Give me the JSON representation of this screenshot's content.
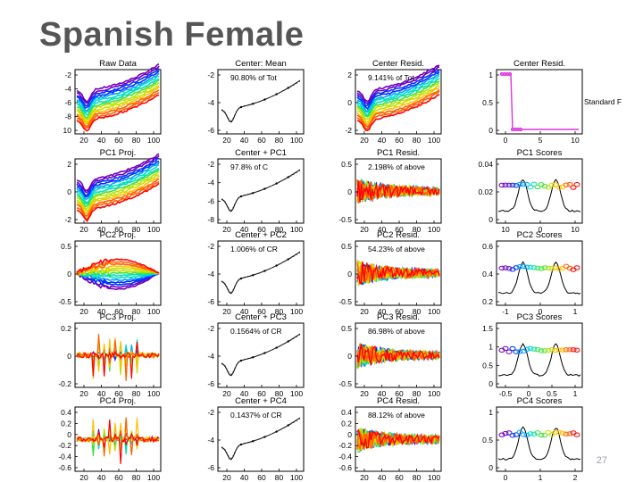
{
  "slide": {
    "title": "Spanish Female",
    "page_number": "27"
  },
  "chart_data": {
    "type": "grid",
    "rows": [
      {
        "row_label": "raw",
        "panels": [
          {
            "title": "Raw Data",
            "kind": "curves",
            "yticks": [
              "-2",
              "-4",
              "-6",
              "-8",
              "10"
            ],
            "xticks": [
              "20",
              "40",
              "60",
              "80",
              "100"
            ],
            "annotation": ""
          },
          {
            "title": "Center: Mean",
            "kind": "center",
            "yticks": [
              "-2",
              "-4",
              "-6"
            ],
            "xticks": [
              "20",
              "40",
              "60",
              "80",
              "100"
            ],
            "annotation": "90.80% of Tot"
          },
          {
            "title": "Center Resid.",
            "kind": "curves",
            "yticks": [
              "2",
              "0",
              "-2"
            ],
            "xticks": [
              "20",
              "40",
              "60",
              "80",
              "100"
            ],
            "annotation": "9.141% of Tot"
          },
          {
            "title": "Center Resid.",
            "kind": "step",
            "yticks": [
              "1",
              "0.5",
              "0"
            ],
            "xticks": [
              "0",
              "5",
              "10"
            ],
            "annotation": "",
            "side_text": "Standard F"
          }
        ]
      },
      {
        "row_label": "pc1",
        "panels": [
          {
            "title": "PC1 Proj.",
            "kind": "curves",
            "yticks": [
              "2",
              "0",
              "-2"
            ],
            "xticks": [
              "20",
              "40",
              "60",
              "80",
              "100"
            ],
            "annotation": ""
          },
          {
            "title": "Center + PC1",
            "kind": "center",
            "yticks": [
              "-2",
              "-4",
              "-6",
              "-8"
            ],
            "xticks": [
              "20",
              "40",
              "60",
              "80",
              "100"
            ],
            "annotation": "97.8% of C"
          },
          {
            "title": "PC1 Resid.",
            "kind": "noisy",
            "yticks": [
              "0.5",
              "0",
              "-0.5"
            ],
            "xticks": [
              "20",
              "40",
              "60",
              "80",
              "100"
            ],
            "annotation": "2.198% of above"
          },
          {
            "title": "PC1 Scores",
            "kind": "scores",
            "yticks": [
              "0.04",
              "0.02",
              "0"
            ],
            "xticks": [
              "10",
              "0",
              "10"
            ],
            "annotation": ""
          }
        ]
      },
      {
        "row_label": "pc2",
        "panels": [
          {
            "title": "PC2 Proj.",
            "kind": "bulge",
            "yticks": [
              "0.5",
              "0",
              "-0.5"
            ],
            "xticks": [
              "20",
              "40",
              "60",
              "80",
              "100"
            ],
            "annotation": ""
          },
          {
            "title": "Center + PC2",
            "kind": "center",
            "yticks": [
              "-2",
              "-4",
              "-6"
            ],
            "xticks": [
              "20",
              "40",
              "60",
              "80",
              "100"
            ],
            "annotation": "1.006% of CR"
          },
          {
            "title": "PC2 Resid.",
            "kind": "noisy",
            "yticks": [
              "0.5",
              "0",
              "-0.5"
            ],
            "xticks": [
              "20",
              "40",
              "60",
              "80",
              "100"
            ],
            "annotation": "54.23% of above"
          },
          {
            "title": "PC2 Scores",
            "kind": "scores",
            "yticks": [
              "0.6",
              "0.4",
              "0.2"
            ],
            "xticks": [
              "-1",
              "0",
              "1"
            ],
            "annotation": ""
          }
        ]
      },
      {
        "row_label": "pc3",
        "panels": [
          {
            "title": "PC3 Proj.",
            "kind": "spiky",
            "yticks": [
              "0.2",
              "0",
              "-0.2"
            ],
            "xticks": [
              "20",
              "40",
              "60",
              "80",
              "100"
            ],
            "annotation": ""
          },
          {
            "title": "Center + PC3",
            "kind": "center",
            "yticks": [
              "-2",
              "-4",
              "-6"
            ],
            "xticks": [
              "20",
              "40",
              "60",
              "80",
              "100"
            ],
            "annotation": "0.1564% of CR"
          },
          {
            "title": "PC3 Resid.",
            "kind": "noisy",
            "yticks": [
              "0.5",
              "0",
              "-0.5"
            ],
            "xticks": [
              "20",
              "40",
              "60",
              "80",
              "100"
            ],
            "annotation": "86.98% of above"
          },
          {
            "title": "PC3 Scores",
            "kind": "scores",
            "yticks": [
              "1.5",
              "1",
              "0.5",
              "0"
            ],
            "xticks": [
              "-0.5",
              "0",
              "0.5",
              "1"
            ],
            "annotation": ""
          }
        ]
      },
      {
        "row_label": "pc4",
        "panels": [
          {
            "title": "PC4 Proj.",
            "kind": "spiky",
            "yticks": [
              "0.4",
              "0.2",
              "0",
              "-0.2",
              "-0.4",
              "-0.6"
            ],
            "xticks": [
              "20",
              "40",
              "60",
              "80",
              "100"
            ],
            "annotation": ""
          },
          {
            "title": "Center + PC4",
            "kind": "center",
            "yticks": [
              "-2",
              "-4",
              "-6"
            ],
            "xticks": [
              "20",
              "40",
              "60",
              "80",
              "100"
            ],
            "annotation": "0.1437% of CR"
          },
          {
            "title": "PC4 Resid.",
            "kind": "noisy",
            "yticks": [
              "0.4",
              "0.2",
              "0",
              "-0.2",
              "-0.4",
              "-0.6"
            ],
            "xticks": [
              "20",
              "40",
              "60",
              "80",
              "100"
            ],
            "annotation": "88.12% of above"
          },
          {
            "title": "PC4 Scores",
            "kind": "scores",
            "yticks": [
              "1",
              "0.5",
              "0"
            ],
            "xticks": [
              "0",
              "1",
              "2"
            ],
            "annotation": ""
          }
        ]
      }
    ],
    "colors": {
      "spectrum": [
        "#7000c0",
        "#0030ff",
        "#00a0ff",
        "#00e0c0",
        "#40e040",
        "#c0e000",
        "#ffc000",
        "#ff6000",
        "#ff0000"
      ],
      "step_line": "#dd33dd",
      "axis": "#000000"
    }
  }
}
